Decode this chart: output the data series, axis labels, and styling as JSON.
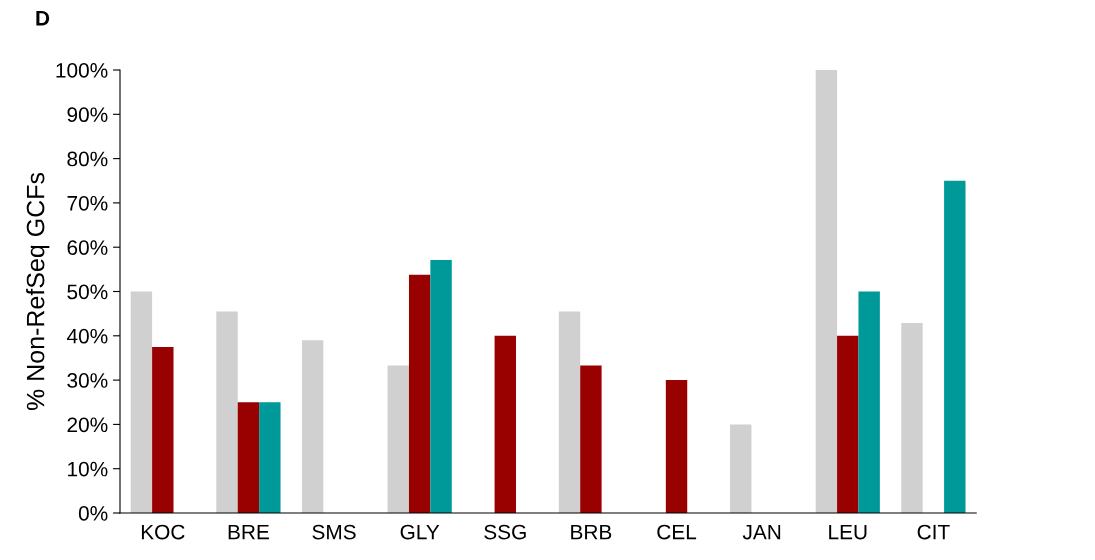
{
  "chart_data": {
    "type": "bar",
    "title": "D",
    "ylabel": "% Non-RefSeq GCFs",
    "categories": [
      "KOC",
      "BRE",
      "SMS",
      "GLY",
      "SSG",
      "BRB",
      "CEL",
      "JAN",
      "LEU",
      "CIT"
    ],
    "series": [
      {
        "color": "#d0d0d0",
        "values": [
          50,
          45.5,
          39,
          33.3,
          0,
          45.5,
          0,
          20,
          100,
          42.9
        ]
      },
      {
        "color": "#990000",
        "values": [
          37.5,
          25,
          0,
          53.8,
          40,
          33.3,
          30,
          0,
          40,
          0
        ]
      },
      {
        "color": "#009999",
        "values": [
          0,
          25,
          0,
          57.1,
          0,
          0,
          0,
          0,
          50,
          75
        ]
      }
    ],
    "ylim": [
      0,
      100
    ],
    "yticks": [
      {
        "value": 0,
        "label": "0%"
      },
      {
        "value": 10,
        "label": "10%"
      },
      {
        "value": 20,
        "label": "20%"
      },
      {
        "value": 30,
        "label": "30%"
      },
      {
        "value": 40,
        "label": "40%"
      },
      {
        "value": 50,
        "label": "50%"
      },
      {
        "value": 60,
        "label": "60%"
      },
      {
        "value": 70,
        "label": "70%"
      },
      {
        "value": 80,
        "label": "80%"
      },
      {
        "value": 90,
        "label": "90%"
      },
      {
        "value": 100,
        "label": "100%"
      }
    ],
    "grid": false,
    "legend": false
  }
}
